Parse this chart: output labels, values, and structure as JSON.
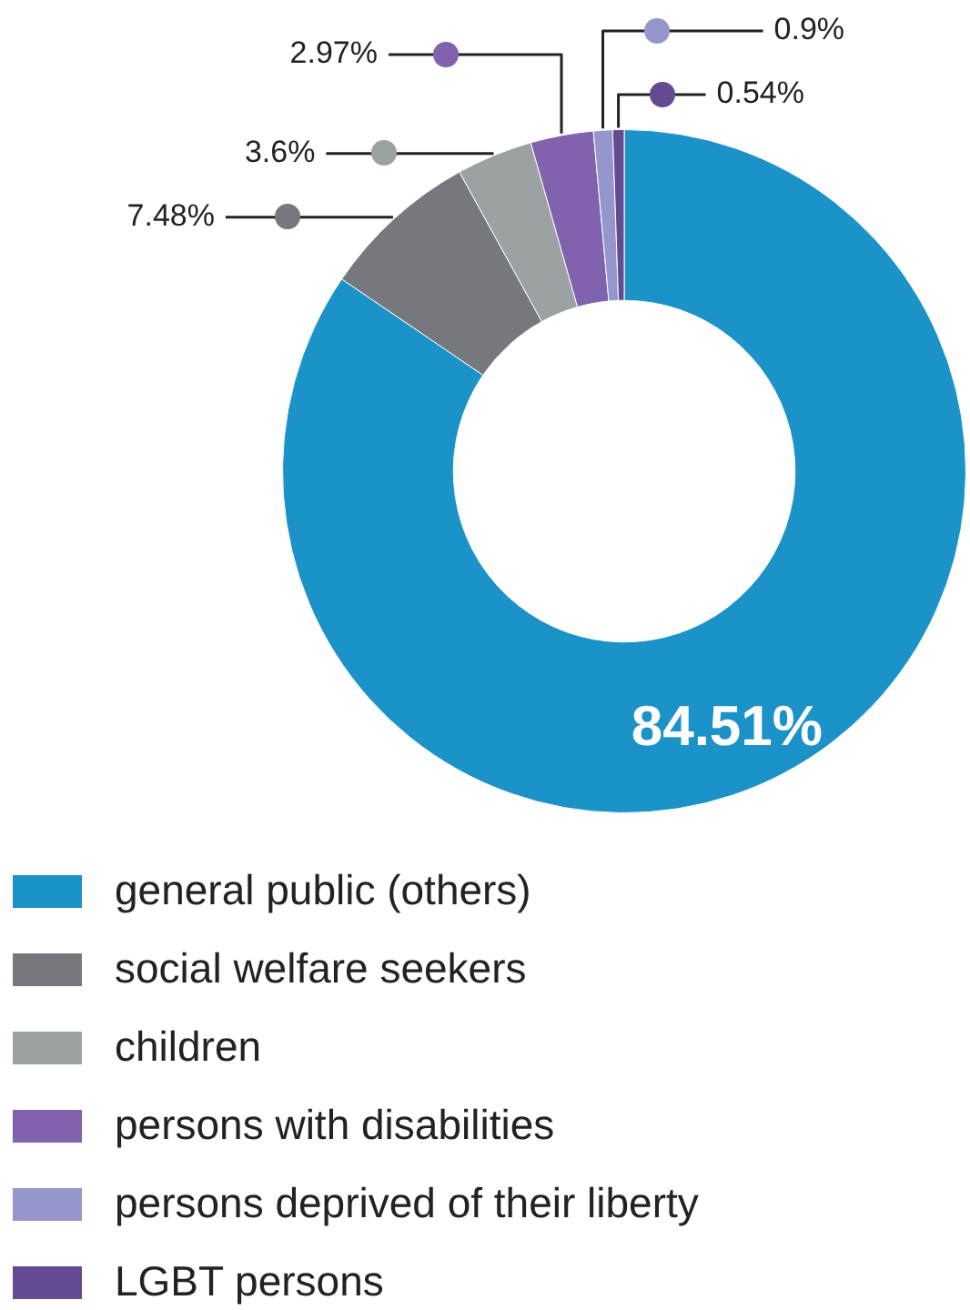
{
  "chart_data": {
    "type": "donut",
    "categories": [
      "general public (others)",
      "social welfare seekers",
      "children",
      "persons with disabilities",
      "persons deprived of their liberty",
      "LGBT persons"
    ],
    "values": [
      84.51,
      7.48,
      3.6,
      2.97,
      0.9,
      0.54
    ],
    "colors": [
      "#1b93c8",
      "#75797d",
      "#9ca1a4",
      "#8062ae",
      "#9596cb",
      "#644a90"
    ],
    "value_labels": [
      "84.51%",
      "7.48%",
      "3.6%",
      "2.97%",
      "0.9%",
      "0.54%"
    ],
    "legend": "bottom"
  }
}
